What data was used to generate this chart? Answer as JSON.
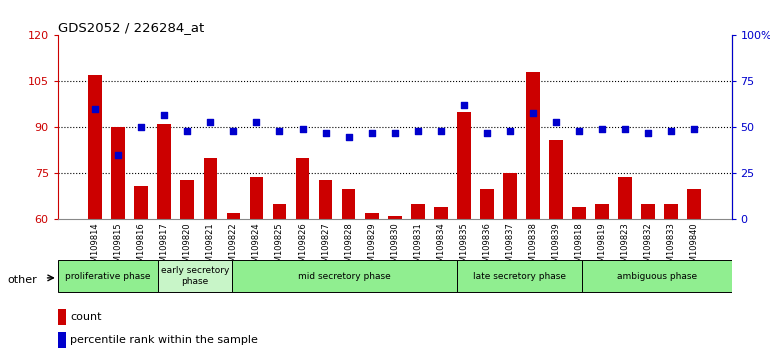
{
  "title": "GDS2052 / 226284_at",
  "samples": [
    "GSM109814",
    "GSM109815",
    "GSM109816",
    "GSM109817",
    "GSM109820",
    "GSM109821",
    "GSM109822",
    "GSM109824",
    "GSM109825",
    "GSM109826",
    "GSM109827",
    "GSM109828",
    "GSM109829",
    "GSM109830",
    "GSM109831",
    "GSM109834",
    "GSM109835",
    "GSM109836",
    "GSM109837",
    "GSM109838",
    "GSM109839",
    "GSM109818",
    "GSM109819",
    "GSM109823",
    "GSM109832",
    "GSM109833",
    "GSM109840"
  ],
  "counts": [
    107,
    90,
    71,
    91,
    73,
    80,
    62,
    74,
    65,
    80,
    73,
    70,
    62,
    61,
    65,
    64,
    95,
    70,
    75,
    108,
    86,
    64,
    65,
    74,
    65,
    65,
    70
  ],
  "percentile_ranks": [
    60,
    35,
    50,
    57,
    48,
    53,
    48,
    53,
    48,
    49,
    47,
    45,
    47,
    47,
    48,
    48,
    62,
    47,
    48,
    58,
    53,
    48,
    49,
    49,
    47,
    48,
    49
  ],
  "phases": [
    {
      "name": "proliferative phase",
      "start": 0,
      "end": 4,
      "color": "#90EE90"
    },
    {
      "name": "early secretory\nphase",
      "start": 4,
      "end": 7,
      "color": "#c8f5c8"
    },
    {
      "name": "mid secretory phase",
      "start": 7,
      "end": 16,
      "color": "#90EE90"
    },
    {
      "name": "late secretory phase",
      "start": 16,
      "end": 21,
      "color": "#90EE90"
    },
    {
      "name": "ambiguous phase",
      "start": 21,
      "end": 27,
      "color": "#90EE90"
    }
  ],
  "ylim_left": [
    60,
    120
  ],
  "ylim_right": [
    0,
    100
  ],
  "bar_color": "#cc0000",
  "dot_color": "#0000cc",
  "grid_color": "#000000",
  "tick_label_color_left": "#cc0000",
  "tick_label_color_right": "#0000cc",
  "yticks_left": [
    60,
    75,
    90,
    105,
    120
  ],
  "yticks_right": [
    0,
    25,
    50,
    75,
    100
  ],
  "ytick_labels_right": [
    "0",
    "25",
    "50",
    "75",
    "100%"
  ],
  "hgrid_vals": [
    75,
    90,
    105
  ],
  "bar_bottom": 60
}
